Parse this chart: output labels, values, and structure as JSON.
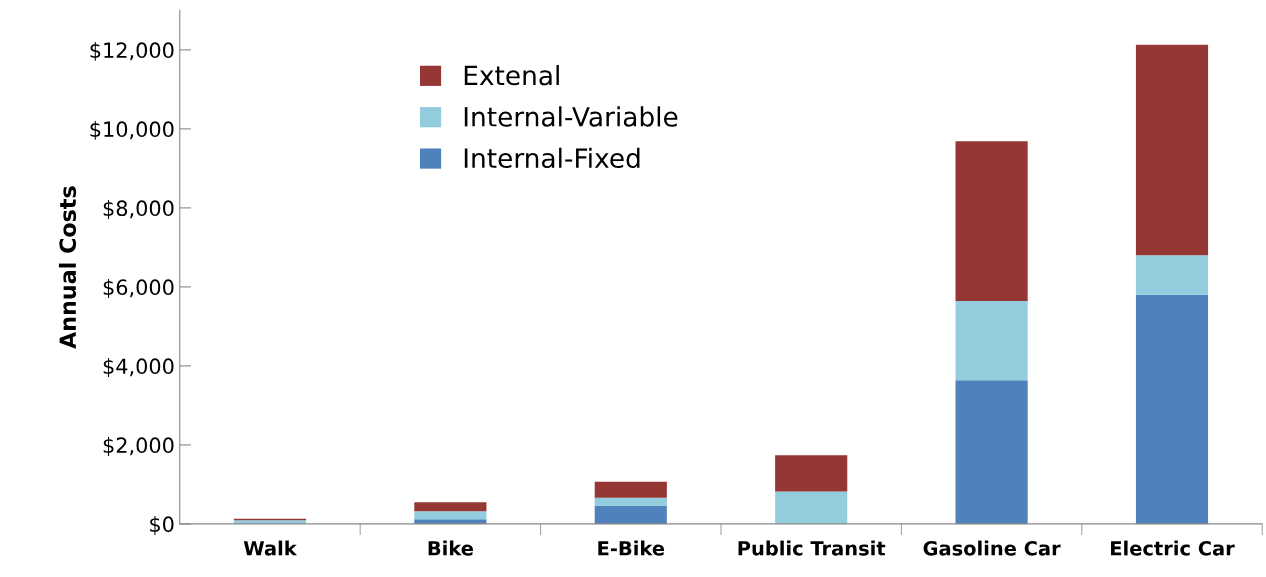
{
  "chart_data": {
    "type": "bar",
    "stacked": true,
    "ylabel": "Annual Costs",
    "categories": [
      "Walk",
      "Bike",
      "E-Bike",
      "Public Transit",
      "Gasoline Car",
      "Electric Car"
    ],
    "series": [
      {
        "name": "Internal-Fixed",
        "color": "#4f81bd",
        "values": [
          0,
          120,
          460,
          0,
          3640,
          5800
        ]
      },
      {
        "name": "Internal-Variable",
        "color": "#93cddd",
        "values": [
          90,
          200,
          200,
          820,
          2000,
          1000
        ]
      },
      {
        "name": "Extenal",
        "color": "#953735",
        "values": [
          40,
          230,
          410,
          920,
          4050,
          5330
        ]
      }
    ],
    "ylim": [
      0,
      13000
    ],
    "yticks": [
      {
        "value": 0,
        "label": "$0"
      },
      {
        "value": 2000,
        "label": "$2,000"
      },
      {
        "value": 4000,
        "label": "$4,000"
      },
      {
        "value": 6000,
        "label": "$6,000"
      },
      {
        "value": 8000,
        "label": "$8,000"
      },
      {
        "value": 10000,
        "label": "$10,000"
      },
      {
        "value": 12000,
        "label": "$12,000"
      }
    ],
    "grid": false,
    "legend": "top left"
  }
}
